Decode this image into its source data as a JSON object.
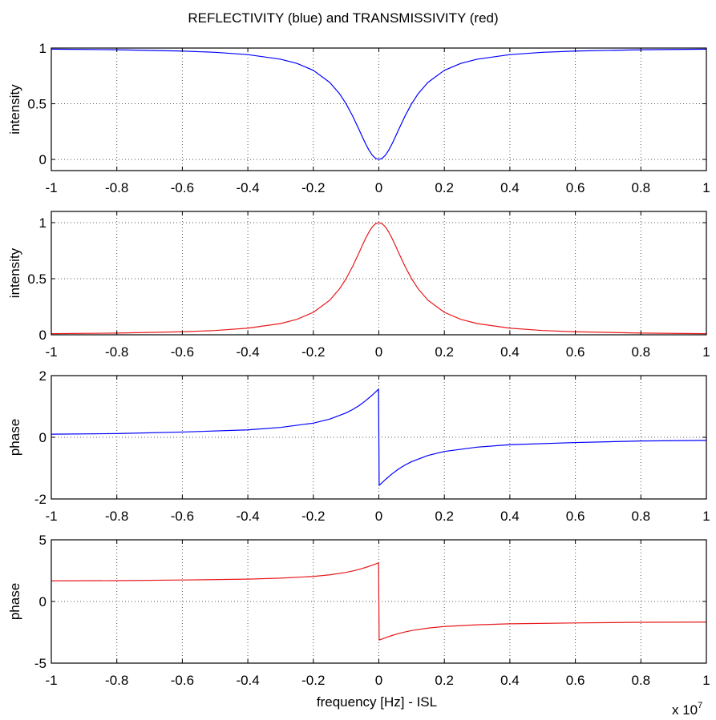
{
  "figure": {
    "title": "REFLECTIVITY (blue) and TRANSMISSIVITY (red)",
    "xlabel": "frequency [Hz] - ISL",
    "x_multiplier": "x 10",
    "x_multiplier_exp": "7"
  },
  "colors": {
    "blue": "#0000ff",
    "red": "#e8191c",
    "grid": "#555555"
  },
  "chart_data": [
    {
      "type": "line",
      "ylabel": "intensity",
      "xlim": [
        -1,
        1
      ],
      "ylim": [
        -0.1,
        1
      ],
      "xticks": [
        -1,
        -0.8,
        -0.6,
        -0.4,
        -0.2,
        0,
        0.2,
        0.4,
        0.6,
        0.8,
        1
      ],
      "xtick_labels": [
        "-1",
        "-0.8",
        "-0.6",
        "-0.4",
        "-0.2",
        "0",
        "0.2",
        "0.4",
        "0.6",
        "0.8",
        "1"
      ],
      "yticks": [
        0,
        0.5,
        1
      ],
      "ytick_labels": [
        "0",
        "0.5",
        "1"
      ],
      "grid": true,
      "series": [
        {
          "color": "#0000ff",
          "x": [
            -1,
            -0.8,
            -0.6,
            -0.5,
            -0.4,
            -0.3,
            -0.25,
            -0.2,
            -0.15,
            -0.12,
            -0.1,
            -0.08,
            -0.06,
            -0.05,
            -0.04,
            -0.03,
            -0.02,
            -0.01,
            0,
            0.01,
            0.02,
            0.03,
            0.04,
            0.05,
            0.06,
            0.08,
            0.1,
            0.12,
            0.15,
            0.2,
            0.25,
            0.3,
            0.4,
            0.5,
            0.6,
            0.8,
            1
          ],
          "y": [
            0.99,
            0.985,
            0.973,
            0.962,
            0.941,
            0.9,
            0.862,
            0.8,
            0.692,
            0.59,
            0.5,
            0.39,
            0.265,
            0.2,
            0.138,
            0.083,
            0.038,
            0.01,
            0,
            0.01,
            0.038,
            0.083,
            0.138,
            0.2,
            0.265,
            0.39,
            0.5,
            0.59,
            0.692,
            0.8,
            0.862,
            0.9,
            0.941,
            0.962,
            0.973,
            0.985,
            0.99
          ]
        }
      ]
    },
    {
      "type": "line",
      "ylabel": "intensity",
      "xlim": [
        -1,
        1
      ],
      "ylim": [
        0,
        1.1
      ],
      "xticks": [
        -1,
        -0.8,
        -0.6,
        -0.4,
        -0.2,
        0,
        0.2,
        0.4,
        0.6,
        0.8,
        1
      ],
      "xtick_labels": [
        "-1",
        "-0.8",
        "-0.6",
        "-0.4",
        "-0.2",
        "0",
        "0.2",
        "0.4",
        "0.6",
        "0.8",
        "1"
      ],
      "yticks": [
        0,
        0.5,
        1
      ],
      "ytick_labels": [
        "0",
        "0.5",
        "1"
      ],
      "grid": true,
      "series": [
        {
          "color": "#e8191c",
          "x": [
            -1,
            -0.8,
            -0.6,
            -0.5,
            -0.4,
            -0.3,
            -0.25,
            -0.2,
            -0.15,
            -0.12,
            -0.1,
            -0.08,
            -0.06,
            -0.05,
            -0.04,
            -0.03,
            -0.02,
            -0.01,
            0,
            0.01,
            0.02,
            0.03,
            0.04,
            0.05,
            0.06,
            0.08,
            0.1,
            0.12,
            0.15,
            0.2,
            0.25,
            0.3,
            0.4,
            0.5,
            0.6,
            0.8,
            1
          ],
          "y": [
            0.01,
            0.015,
            0.027,
            0.038,
            0.059,
            0.1,
            0.138,
            0.2,
            0.308,
            0.41,
            0.5,
            0.61,
            0.735,
            0.8,
            0.862,
            0.917,
            0.962,
            0.99,
            1,
            0.99,
            0.962,
            0.917,
            0.862,
            0.8,
            0.735,
            0.61,
            0.5,
            0.41,
            0.308,
            0.2,
            0.138,
            0.1,
            0.059,
            0.038,
            0.027,
            0.015,
            0.01
          ]
        }
      ]
    },
    {
      "type": "line",
      "ylabel": "phase",
      "xlim": [
        -1,
        1
      ],
      "ylim": [
        -2,
        2
      ],
      "xticks": [
        -1,
        -0.8,
        -0.6,
        -0.4,
        -0.2,
        0,
        0.2,
        0.4,
        0.6,
        0.8,
        1
      ],
      "xtick_labels": [
        "-1",
        "-0.8",
        "-0.6",
        "-0.4",
        "-0.2",
        "0",
        "0.2",
        "0.4",
        "0.6",
        "0.8",
        "1"
      ],
      "yticks": [
        -2,
        0,
        2
      ],
      "ytick_labels": [
        "-2",
        "0",
        "2"
      ],
      "grid": true,
      "series": [
        {
          "color": "#0000ff",
          "x": [
            -1,
            -0.8,
            -0.6,
            -0.4,
            -0.3,
            -0.2,
            -0.15,
            -0.1,
            -0.08,
            -0.06,
            -0.04,
            -0.02,
            -0.01,
            -0.001,
            0.001,
            0.01,
            0.02,
            0.04,
            0.06,
            0.08,
            0.1,
            0.15,
            0.2,
            0.3,
            0.4,
            0.6,
            0.8,
            1
          ],
          "y": [
            0.1,
            0.12,
            0.17,
            0.24,
            0.32,
            0.46,
            0.59,
            0.79,
            0.9,
            1.03,
            1.19,
            1.37,
            1.47,
            1.56,
            -1.56,
            -1.47,
            -1.37,
            -1.19,
            -1.03,
            -0.9,
            -0.79,
            -0.59,
            -0.46,
            -0.32,
            -0.24,
            -0.17,
            -0.12,
            -0.1
          ]
        }
      ]
    },
    {
      "type": "line",
      "ylabel": "phase",
      "xlim": [
        -1,
        1
      ],
      "ylim": [
        -5,
        5
      ],
      "xticks": [
        -1,
        -0.8,
        -0.6,
        -0.4,
        -0.2,
        0,
        0.2,
        0.4,
        0.6,
        0.8,
        1
      ],
      "xtick_labels": [
        "-1",
        "-0.8",
        "-0.6",
        "-0.4",
        "-0.2",
        "0",
        "0.2",
        "0.4",
        "0.6",
        "0.8",
        "1"
      ],
      "yticks": [
        -5,
        0,
        5
      ],
      "ytick_labels": [
        "-5",
        "0",
        "5"
      ],
      "grid": true,
      "series": [
        {
          "color": "#e8191c",
          "x": [
            -1,
            -0.8,
            -0.6,
            -0.4,
            -0.3,
            -0.2,
            -0.15,
            -0.1,
            -0.08,
            -0.06,
            -0.04,
            -0.02,
            -0.01,
            -0.001,
            0.001,
            0.01,
            0.02,
            0.04,
            0.06,
            0.08,
            0.1,
            0.15,
            0.2,
            0.3,
            0.4,
            0.6,
            0.8,
            1
          ],
          "y": [
            1.67,
            1.69,
            1.74,
            1.81,
            1.89,
            2.03,
            2.16,
            2.36,
            2.47,
            2.6,
            2.76,
            2.94,
            3.04,
            3.13,
            -3.13,
            -3.04,
            -2.94,
            -2.76,
            -2.6,
            -2.47,
            -2.36,
            -2.16,
            -2.03,
            -1.89,
            -1.81,
            -1.74,
            -1.69,
            -1.67
          ]
        }
      ]
    }
  ]
}
